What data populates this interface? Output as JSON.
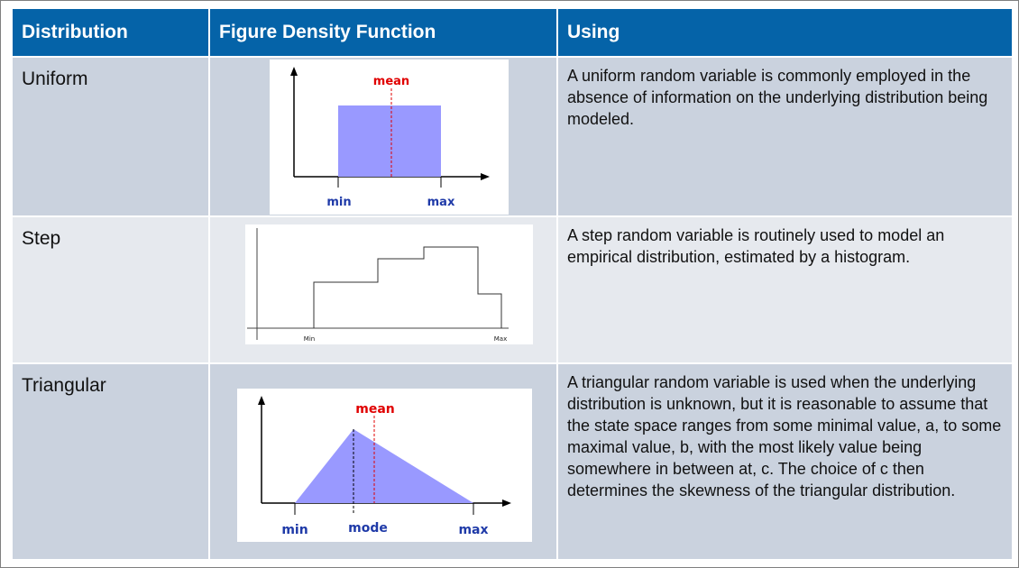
{
  "header": {
    "distribution": "Distribution",
    "figure": "Figure Density Function",
    "using": "Using"
  },
  "rows": [
    {
      "name": "Uniform",
      "description": "A uniform random variable is commonly employed in the absence of information on the underlying distribution being modeled.",
      "figure": {
        "mean_label": "mean",
        "min_label": "min",
        "max_label": "max"
      }
    },
    {
      "name": "Step",
      "description": "A step random variable is routinely used to model an empirical distribution, estimated by a histogram.",
      "figure": {
        "min_label": "Min",
        "max_label": "Max"
      }
    },
    {
      "name": "Triangular",
      "description": "A triangular random variable is used when the underlying distribution is unknown, but it is reasonable to assume that the state space ranges from some minimal value, a, to some maximal value, b, with the most likely value being somewhere in between at, c. The choice of c then determines the skewness of the triangular distribution.",
      "figure": {
        "mean_label": "mean",
        "min_label": "min",
        "mode_label": "mode",
        "max_label": "max"
      }
    }
  ],
  "colors": {
    "header_bg": "#0563a8",
    "row_dark": "#cad2de",
    "row_light": "#e6e9ee",
    "fill": "#9999ff",
    "label_blue": "#1f3aa8",
    "mean_red": "#e00000"
  }
}
